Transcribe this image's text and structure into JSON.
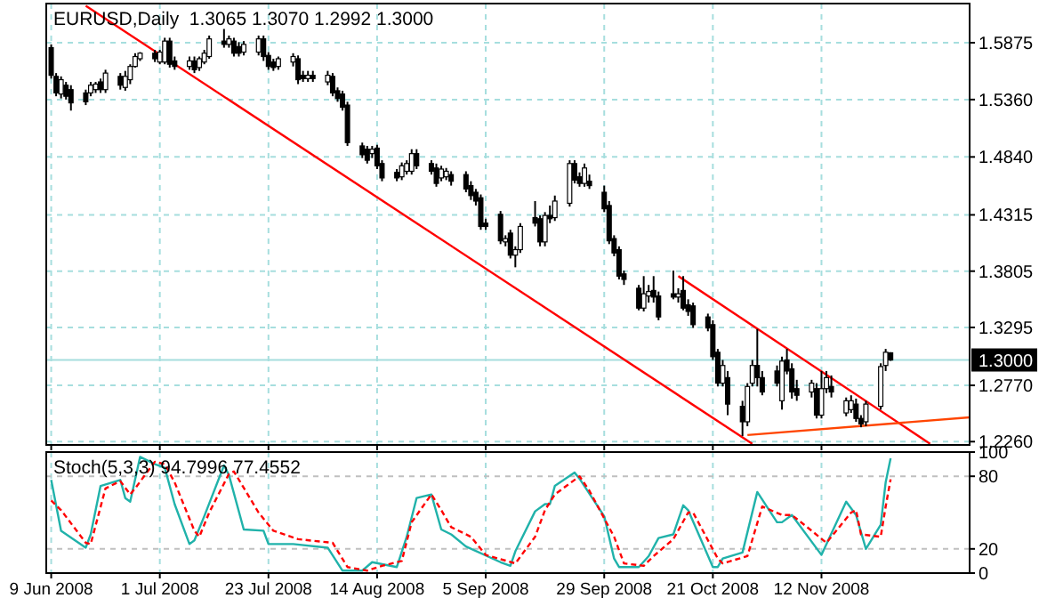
{
  "chart_data": [
    {
      "type": "candlestick",
      "title": "EURUSD,Daily  1.3065 1.3070 1.2992 1.3000",
      "x": [
        "2008-06-09",
        "2008-06-10",
        "2008-06-11",
        "2008-06-12",
        "2008-06-13",
        "2008-06-16",
        "2008-06-17",
        "2008-06-18",
        "2008-06-19",
        "2008-06-20",
        "2008-06-23",
        "2008-06-24",
        "2008-06-25",
        "2008-06-26",
        "2008-06-27",
        "2008-06-30",
        "2008-07-01",
        "2008-07-02",
        "2008-07-03",
        "2008-07-04",
        "2008-07-07",
        "2008-07-08",
        "2008-07-09",
        "2008-07-10",
        "2008-07-11",
        "2008-07-14",
        "2008-07-15",
        "2008-07-16",
        "2008-07-17",
        "2008-07-18",
        "2008-07-21",
        "2008-07-22",
        "2008-07-23",
        "2008-07-24",
        "2008-07-25",
        "2008-07-28",
        "2008-07-29",
        "2008-07-30",
        "2008-07-31",
        "2008-08-01",
        "2008-08-04",
        "2008-08-05",
        "2008-08-06",
        "2008-08-07",
        "2008-08-08",
        "2008-08-11",
        "2008-08-12",
        "2008-08-13",
        "2008-08-14",
        "2008-08-15",
        "2008-08-18",
        "2008-08-19",
        "2008-08-20",
        "2008-08-21",
        "2008-08-22",
        "2008-08-25",
        "2008-08-26",
        "2008-08-27",
        "2008-08-28",
        "2008-08-29",
        "2008-09-01",
        "2008-09-02",
        "2008-09-03",
        "2008-09-04",
        "2008-09-05",
        "2008-09-08",
        "2008-09-09",
        "2008-09-10",
        "2008-09-11",
        "2008-09-12",
        "2008-09-15",
        "2008-09-16",
        "2008-09-17",
        "2008-09-18",
        "2008-09-19",
        "2008-09-22",
        "2008-09-23",
        "2008-09-24",
        "2008-09-25",
        "2008-09-26",
        "2008-09-29",
        "2008-09-30",
        "2008-10-01",
        "2008-10-02",
        "2008-10-03",
        "2008-10-06",
        "2008-10-07",
        "2008-10-08",
        "2008-10-09",
        "2008-10-10",
        "2008-10-13",
        "2008-10-14",
        "2008-10-15",
        "2008-10-16",
        "2008-10-17",
        "2008-10-20",
        "2008-10-21",
        "2008-10-22",
        "2008-10-23",
        "2008-10-24",
        "2008-10-27",
        "2008-10-28",
        "2008-10-29",
        "2008-10-30",
        "2008-10-31",
        "2008-11-03",
        "2008-11-04",
        "2008-11-05",
        "2008-11-06",
        "2008-11-07",
        "2008-11-10",
        "2008-11-11",
        "2008-11-12",
        "2008-11-13",
        "2008-11-14",
        "2008-11-17",
        "2008-11-18",
        "2008-11-19",
        "2008-11-20",
        "2008-11-21",
        "2008-11-24",
        "2008-11-25",
        "2008-11-26"
      ],
      "ohlc": [
        [
          1.583,
          1.586,
          1.555,
          1.558
        ],
        [
          1.557,
          1.56,
          1.539,
          1.542
        ],
        [
          1.541,
          1.557,
          1.537,
          1.554
        ],
        [
          1.549,
          1.552,
          1.536,
          1.539
        ],
        [
          1.545,
          1.549,
          1.526,
          1.533
        ],
        [
          1.542,
          1.545,
          1.531,
          1.534
        ],
        [
          1.542,
          1.552,
          1.539,
          1.549
        ],
        [
          1.545,
          1.552,
          1.542,
          1.55
        ],
        [
          1.552,
          1.555,
          1.542,
          1.545
        ],
        [
          1.545,
          1.563,
          1.542,
          1.56
        ],
        [
          1.557,
          1.56,
          1.545,
          1.549
        ],
        [
          1.547,
          1.562,
          1.544,
          1.557
        ],
        [
          1.554,
          1.568,
          1.55,
          1.566
        ],
        [
          1.566,
          1.578,
          1.565,
          1.575
        ],
        [
          1.573,
          1.579,
          1.571,
          1.578
        ],
        [
          1.578,
          1.581,
          1.57,
          1.573
        ],
        [
          1.57,
          1.581,
          1.568,
          1.579
        ],
        [
          1.57,
          1.592,
          1.568,
          1.589
        ],
        [
          1.589,
          1.592,
          1.565,
          1.568
        ],
        [
          1.571,
          1.575,
          1.563,
          1.566
        ],
        [
          1.566,
          1.575,
          1.563,
          1.571
        ],
        [
          1.571,
          1.575,
          1.56,
          1.563
        ],
        [
          1.565,
          1.575,
          1.562,
          1.573
        ],
        [
          1.57,
          1.581,
          1.568,
          1.578
        ],
        [
          1.575,
          1.594,
          1.573,
          1.591
        ],
        [
          1.589,
          1.6,
          1.583,
          1.586
        ],
        [
          1.586,
          1.594,
          1.583,
          1.591
        ],
        [
          1.589,
          1.592,
          1.575,
          1.578
        ],
        [
          1.584,
          1.588,
          1.575,
          1.578
        ],
        [
          1.579,
          1.589,
          1.576,
          1.586
        ],
        [
          1.579,
          1.594,
          1.576,
          1.591
        ],
        [
          1.591,
          1.594,
          1.571,
          1.575
        ],
        [
          1.576,
          1.579,
          1.563,
          1.566
        ],
        [
          1.57,
          1.573,
          1.562,
          1.565
        ],
        [
          1.566,
          1.575,
          1.563,
          1.573
        ],
        [
          1.57,
          1.578,
          1.566,
          1.575
        ],
        [
          1.573,
          1.576,
          1.55,
          1.554
        ],
        [
          1.558,
          1.562,
          1.552,
          1.555
        ],
        [
          1.555,
          1.562,
          1.552,
          1.558
        ],
        [
          1.558,
          1.562,
          1.552,
          1.555
        ],
        [
          1.552,
          1.562,
          1.549,
          1.558
        ],
        [
          1.557,
          1.56,
          1.539,
          1.542
        ],
        [
          1.544,
          1.547,
          1.534,
          1.537
        ],
        [
          1.541,
          1.544,
          1.526,
          1.529
        ],
        [
          1.531,
          1.534,
          1.494,
          1.497
        ],
        [
          1.494,
          1.497,
          1.483,
          1.486
        ],
        [
          1.491,
          1.494,
          1.478,
          1.481
        ],
        [
          1.487,
          1.494,
          1.483,
          1.491
        ],
        [
          1.492,
          1.495,
          1.473,
          1.476
        ],
        [
          1.478,
          1.481,
          1.462,
          1.465
        ],
        [
          1.47,
          1.473,
          1.462,
          1.465
        ],
        [
          1.466,
          1.479,
          1.463,
          1.476
        ],
        [
          1.471,
          1.481,
          1.468,
          1.478
        ],
        [
          1.471,
          1.491,
          1.468,
          1.487
        ],
        [
          1.487,
          1.491,
          1.473,
          1.476
        ],
        [
          1.478,
          1.481,
          1.468,
          1.471
        ],
        [
          1.474,
          1.478,
          1.457,
          1.46
        ],
        [
          1.465,
          1.476,
          1.462,
          1.473
        ],
        [
          1.466,
          1.474,
          1.463,
          1.471
        ],
        [
          1.468,
          1.471,
          1.458,
          1.462
        ],
        [
          1.468,
          1.471,
          1.452,
          1.455
        ],
        [
          1.458,
          1.462,
          1.445,
          1.449
        ],
        [
          1.452,
          1.455,
          1.44,
          1.444
        ],
        [
          1.447,
          1.45,
          1.418,
          1.421
        ],
        [
          1.424,
          1.428,
          1.418,
          1.421
        ],
        [
          1.432,
          1.435,
          1.405,
          1.408
        ],
        [
          1.407,
          1.413,
          1.403,
          1.41
        ],
        [
          1.415,
          1.418,
          1.392,
          1.395
        ],
        [
          1.395,
          1.403,
          1.384,
          1.4
        ],
        [
          1.4,
          1.424,
          1.397,
          1.421
        ],
        [
          1.429,
          1.444,
          1.421,
          1.424
        ],
        [
          1.428,
          1.431,
          1.403,
          1.407
        ],
        [
          1.407,
          1.434,
          1.403,
          1.431
        ],
        [
          1.431,
          1.44,
          1.424,
          1.428
        ],
        [
          1.429,
          1.449,
          1.426,
          1.444
        ],
        [
          1.442,
          1.481,
          1.439,
          1.478
        ],
        [
          1.478,
          1.481,
          1.46,
          1.463
        ],
        [
          1.466,
          1.47,
          1.457,
          1.46
        ],
        [
          1.46,
          1.478,
          1.457,
          1.474
        ],
        [
          1.462,
          1.468,
          1.455,
          1.458
        ],
        [
          1.452,
          1.458,
          1.434,
          1.437
        ],
        [
          1.44,
          1.444,
          1.405,
          1.408
        ],
        [
          1.41,
          1.413,
          1.394,
          1.397
        ],
        [
          1.4,
          1.403,
          1.373,
          1.376
        ],
        [
          1.378,
          1.381,
          1.368,
          1.373
        ],
        [
          1.365,
          1.368,
          1.345,
          1.347
        ],
        [
          1.347,
          1.376,
          1.344,
          1.36
        ],
        [
          1.358,
          1.368,
          1.352,
          1.362
        ],
        [
          1.363,
          1.376,
          1.352,
          1.357
        ],
        [
          1.358,
          1.362,
          1.336,
          1.339
        ],
        [
          1.36,
          1.381,
          1.355,
          1.357
        ],
        [
          1.357,
          1.365,
          1.352,
          1.36
        ],
        [
          1.363,
          1.376,
          1.345,
          1.347
        ],
        [
          1.35,
          1.355,
          1.34,
          1.344
        ],
        [
          1.349,
          1.352,
          1.329,
          1.332
        ],
        [
          1.339,
          1.342,
          1.326,
          1.329
        ],
        [
          1.332,
          1.336,
          1.3,
          1.303
        ],
        [
          1.307,
          1.31,
          1.276,
          1.279
        ],
        [
          1.279,
          1.3,
          1.276,
          1.295
        ],
        [
          1.284,
          1.29,
          1.25,
          1.26
        ],
        [
          1.258,
          1.263,
          1.231,
          1.244
        ],
        [
          1.244,
          1.279,
          1.24,
          1.276
        ],
        [
          1.279,
          1.3,
          1.276,
          1.295
        ],
        [
          1.295,
          1.328,
          1.276,
          1.284
        ],
        [
          1.284,
          1.29,
          1.268,
          1.271
        ],
        [
          1.29,
          1.295,
          1.276,
          1.279
        ],
        [
          1.263,
          1.303,
          1.255,
          1.299
        ],
        [
          1.3,
          1.31,
          1.287,
          1.29
        ],
        [
          1.292,
          1.297,
          1.265,
          1.271
        ],
        [
          1.274,
          1.282,
          1.263,
          1.268
        ],
        [
          1.271,
          1.282,
          1.266,
          1.279
        ],
        [
          1.274,
          1.279,
          1.247,
          1.25
        ],
        [
          1.25,
          1.29,
          1.247,
          1.274
        ],
        [
          1.274,
          1.29,
          1.27,
          1.284
        ],
        [
          1.276,
          1.286,
          1.266,
          1.271
        ],
        [
          1.252,
          1.266,
          1.249,
          1.263
        ],
        [
          1.255,
          1.268,
          1.252,
          1.263
        ],
        [
          1.26,
          1.265,
          1.244,
          1.247
        ],
        [
          1.247,
          1.25,
          1.239,
          1.242
        ],
        [
          1.244,
          1.263,
          1.24,
          1.26
        ],
        [
          1.258,
          1.297,
          1.255,
          1.294
        ],
        [
          1.295,
          1.31,
          1.29,
          1.307
        ],
        [
          1.3065,
          1.307,
          1.2992,
          1.3
        ]
      ],
      "series": [
        {
          "type": "line",
          "color": "#ff0000",
          "x": [
            "2008-06-16",
            "2008-10-29"
          ],
          "values": [
            1.621,
            1.224
          ]
        },
        {
          "type": "line",
          "color": "#ff0000",
          "x": [
            "2008-10-14",
            "2008-12-04"
          ],
          "values": [
            1.376,
            1.224
          ]
        },
        {
          "type": "line",
          "color": "#ff4500",
          "x": [
            "2008-10-28",
            "2008-12-12"
          ],
          "values": [
            1.232,
            1.248
          ]
        }
      ],
      "xlim": [
        "2008-06-08",
        "2008-12-12"
      ],
      "xticks": [
        {
          "value": "2008-06-09",
          "label": null
        },
        {
          "value": "2008-07-01",
          "label": null
        },
        {
          "value": "2008-07-23",
          "label": null
        },
        {
          "value": "2008-08-14",
          "label": null
        },
        {
          "value": "2008-09-05",
          "label": null
        },
        {
          "value": "2008-09-29",
          "label": null
        },
        {
          "value": "2008-10-21",
          "label": null
        },
        {
          "value": "2008-11-12",
          "label": null
        }
      ],
      "ylim": [
        1.223,
        1.623
      ],
      "yticks": [
        1.5875,
        {
          "value": 1.536,
          "label": "1.5360"
        },
        {
          "value": 1.484,
          "label": "1.4840"
        },
        1.4315,
        1.3805,
        1.3295,
        {
          "value": 1.277,
          "label": "1.2770"
        },
        {
          "value": 1.226,
          "label": "1.2260"
        }
      ],
      "ref_lines": [
        {
          "axis": "y",
          "value": 1.3,
          "label": "1.3000",
          "color": "#a6dede"
        }
      ],
      "grid": true,
      "tick_labels": "y"
    },
    {
      "type": "line",
      "title": "Stoch(5,3,3) 94.7996 77.4552",
      "series": [
        {
          "color": "#20b2aa",
          "x": [
            "2008-06-09",
            "2008-06-11",
            "2008-06-16",
            "2008-06-17",
            "2008-06-19",
            "2008-06-23",
            "2008-06-24",
            "2008-06-25",
            "2008-06-27",
            "2008-06-30",
            "2008-07-02",
            "2008-07-04",
            "2008-07-07",
            "2008-07-08",
            "2008-07-10",
            "2008-07-14",
            "2008-07-15",
            "2008-07-18",
            "2008-07-22",
            "2008-07-23",
            "2008-07-28",
            "2008-08-04",
            "2008-08-07",
            "2008-08-11",
            "2008-08-13",
            "2008-08-18",
            "2008-08-20",
            "2008-08-22",
            "2008-08-25",
            "2008-08-27",
            "2008-08-29",
            "2008-09-01",
            "2008-09-08",
            "2008-09-10",
            "2008-09-11",
            "2008-09-15",
            "2008-09-17",
            "2008-09-18",
            "2008-09-19",
            "2008-09-23",
            "2008-09-24",
            "2008-09-29",
            "2008-10-01",
            "2008-10-02",
            "2008-10-06",
            "2008-10-08",
            "2008-10-10",
            "2008-10-13",
            "2008-10-15",
            "2008-10-16",
            "2008-10-21",
            "2008-10-22",
            "2008-10-23",
            "2008-10-27",
            "2008-10-30",
            "2008-11-03",
            "2008-11-04",
            "2008-11-06",
            "2008-11-12",
            "2008-11-17",
            "2008-11-19",
            "2008-11-21",
            "2008-11-24",
            "2008-11-25",
            "2008-11-26"
          ],
          "values": [
            77,
            35,
            21,
            32,
            72,
            77,
            62,
            59,
            96,
            90,
            87,
            57,
            24,
            27,
            47,
            89,
            81,
            36,
            35,
            24,
            24,
            21,
            2,
            2,
            9,
            5,
            30,
            62,
            65,
            36,
            32,
            22,
            9,
            6,
            18,
            51,
            57,
            57,
            72,
            83,
            78,
            47,
            12,
            5,
            5,
            14,
            29,
            32,
            56,
            52,
            5,
            5,
            12,
            17,
            67,
            42,
            42,
            48,
            15,
            59,
            48,
            20,
            40,
            75,
            94.8
          ]
        },
        {
          "color": "#ff0000",
          "line_style": "dashed",
          "x": [
            "2008-06-09",
            "2008-06-11",
            "2008-06-16",
            "2008-06-17",
            "2008-06-20",
            "2008-06-23",
            "2008-06-25",
            "2008-06-26",
            "2008-06-30",
            "2008-07-02",
            "2008-07-04",
            "2008-07-08",
            "2008-07-09",
            "2008-07-11",
            "2008-07-15",
            "2008-07-16",
            "2008-07-21",
            "2008-07-24",
            "2008-07-29",
            "2008-08-05",
            "2008-08-08",
            "2008-08-12",
            "2008-08-15",
            "2008-08-19",
            "2008-08-21",
            "2008-08-25",
            "2008-08-27",
            "2008-08-29",
            "2008-09-02",
            "2008-09-05",
            "2008-09-11",
            "2008-09-15",
            "2008-09-17",
            "2008-09-19",
            "2008-09-24",
            "2008-09-26",
            "2008-10-01",
            "2008-10-03",
            "2008-10-07",
            "2008-10-09",
            "2008-10-13",
            "2008-10-16",
            "2008-10-17",
            "2008-10-22",
            "2008-10-23",
            "2008-10-28",
            "2008-10-31",
            "2008-11-04",
            "2008-11-06",
            "2008-11-10",
            "2008-11-13",
            "2008-11-18",
            "2008-11-19",
            "2008-11-20",
            "2008-11-24",
            "2008-11-25",
            "2008-11-26"
          ],
          "values": [
            60,
            52,
            25,
            24,
            70,
            76,
            65,
            70,
            92,
            90,
            75,
            35,
            30,
            50,
            82,
            84,
            50,
            35,
            28,
            25,
            5,
            2,
            6,
            10,
            42,
            65,
            52,
            38,
            30,
            15,
            8,
            30,
            52,
            65,
            80,
            68,
            30,
            8,
            6,
            14,
            28,
            50,
            50,
            12,
            8,
            14,
            55,
            48,
            48,
            35,
            25,
            50,
            52,
            32,
            30,
            55,
            77.5
          ]
        }
      ],
      "xlim": [
        "2008-06-08",
        "2008-12-12"
      ],
      "xticks": [
        {
          "value": "2008-06-09",
          "label": "9 Jun 2008"
        },
        {
          "value": "2008-07-01",
          "label": "1 Jul 2008"
        },
        {
          "value": "2008-07-23",
          "label": "23 Jul 2008"
        },
        {
          "value": "2008-08-14",
          "label": "14 Aug 2008"
        },
        {
          "value": "2008-09-05",
          "label": "5 Sep 2008"
        },
        {
          "value": "2008-09-29",
          "label": "29 Sep 2008"
        },
        {
          "value": "2008-10-21",
          "label": "21 Oct 2008"
        },
        {
          "value": "2008-11-12",
          "label": "12 Nov 2008"
        }
      ],
      "ylim": [
        0,
        100
      ],
      "yticks": [
        0,
        20,
        80,
        100
      ],
      "grid": true
    }
  ]
}
